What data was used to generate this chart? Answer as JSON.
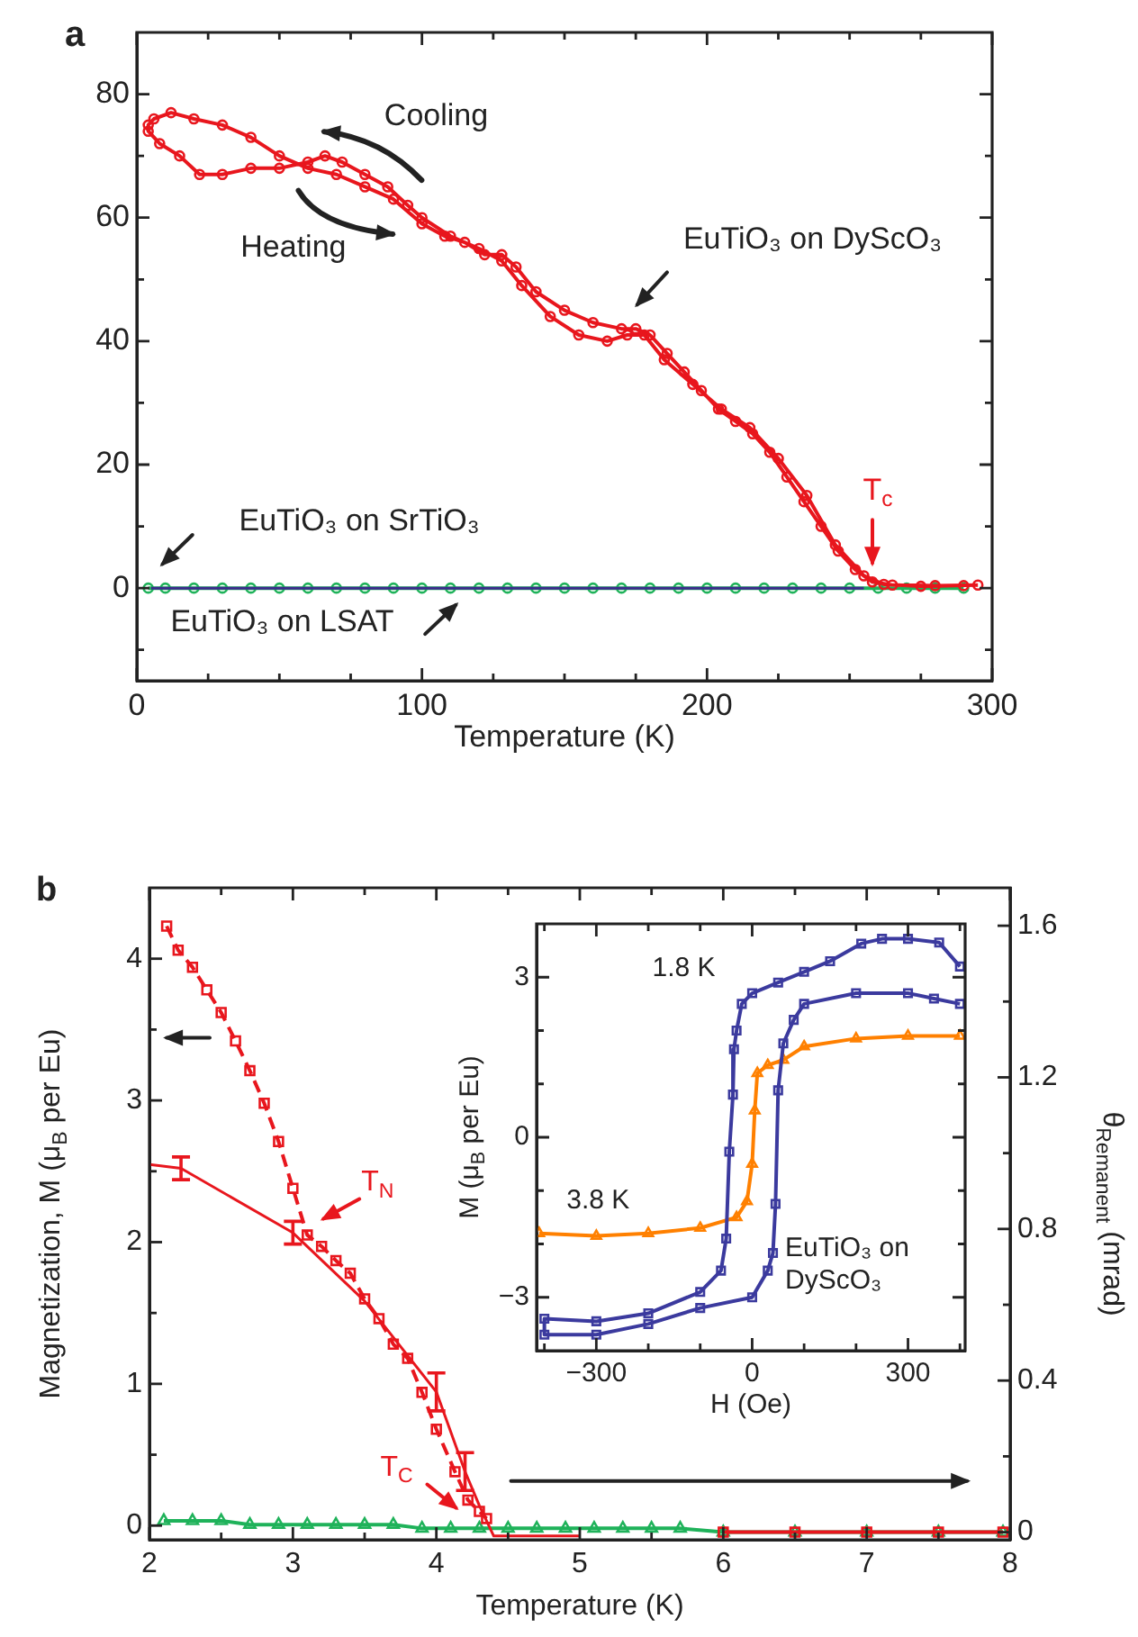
{
  "chart_data": [
    {
      "type": "line",
      "title": "a",
      "xlabel": "Temperature (K)",
      "xlim": [
        0,
        300
      ],
      "xticks": [
        0,
        {
          "value": 25,
          "label": null
        },
        {
          "value": 50,
          "label": null
        },
        {
          "value": 75,
          "label": null
        },
        100,
        {
          "value": 125,
          "label": null
        },
        {
          "value": 150,
          "label": null
        },
        {
          "value": 175,
          "label": null
        },
        200,
        {
          "value": 225,
          "label": null
        },
        {
          "value": 250,
          "label": null
        },
        {
          "value": 275,
          "label": null
        },
        300
      ],
      "ylim": [
        -15,
        90
      ],
      "yticks": [
        {
          "value": -10,
          "label": null
        },
        0,
        {
          "value": 10,
          "label": null
        },
        20,
        {
          "value": 30,
          "label": null
        },
        40,
        {
          "value": 50,
          "label": null
        },
        60,
        {
          "value": 70,
          "label": null
        },
        80
      ],
      "grid": false,
      "legend": false,
      "annotations": [
        "Cooling",
        "Heating",
        {
          "text": "T$_{c}$",
          "x": 258,
          "y": 0
        }
      ],
      "series": [
        {
          "name": "EuTiO₃ on DyScO₃",
          "color": "#e8161d",
          "marker": "circle",
          "line_style": "solid",
          "x": [
            295,
            280,
            265,
            258,
            252,
            246,
            240,
            234,
            228,
            222,
            216,
            210,
            204,
            198,
            192,
            186,
            180,
            175,
            170,
            160,
            150,
            140,
            133,
            128,
            122,
            115,
            108,
            100,
            90,
            80,
            70,
            60,
            50,
            40,
            30,
            20,
            12,
            6,
            4,
            4,
            8,
            15,
            22,
            30,
            40,
            50,
            60,
            66,
            72,
            80,
            88,
            95,
            100,
            110,
            120,
            128,
            135,
            145,
            155,
            165,
            172,
            178,
            185,
            195,
            205,
            215,
            225,
            235,
            245,
            255,
            262,
            275,
            290
          ],
          "values": [
            0.5,
            0.4,
            0.5,
            1,
            3,
            6,
            10,
            14,
            18,
            22,
            25,
            27,
            29,
            32,
            35,
            38,
            41,
            42,
            42,
            43,
            45,
            48,
            52,
            54,
            54,
            56,
            57,
            59,
            63,
            65,
            67,
            68,
            70,
            73,
            75,
            76,
            77,
            76,
            75,
            74,
            72,
            70,
            67,
            67,
            68,
            68,
            69,
            70,
            69,
            67,
            65,
            62,
            60,
            57,
            55,
            53,
            49,
            44,
            41,
            40,
            41,
            41,
            37,
            33,
            29,
            26,
            21,
            15,
            7,
            2,
            0.6,
            0.3,
            0.4
          ]
        },
        {
          "name": "EuTiO₃ on SrTiO₃",
          "color": "#1fb25a",
          "marker": "circle",
          "line_style": "solid",
          "x": [
            4,
            10,
            20,
            30,
            40,
            50,
            60,
            70,
            80,
            90,
            100,
            110,
            120,
            130,
            140,
            150,
            160,
            170,
            180,
            190,
            200,
            210,
            220,
            230,
            240,
            250,
            260,
            270,
            280,
            290
          ],
          "values": [
            0,
            0,
            0,
            0,
            0,
            0,
            0,
            0,
            0,
            0,
            0,
            0,
            0,
            0,
            0,
            0,
            0,
            0,
            0,
            0,
            0,
            0,
            0,
            0,
            0,
            0,
            0,
            0,
            0,
            0
          ]
        },
        {
          "name": "EuTiO₃ on LSAT",
          "color": "#3b2a8c",
          "marker": "none",
          "line_style": "solid",
          "x": [
            5,
            35,
            65,
            95,
            125,
            155,
            185,
            215,
            245,
            255
          ],
          "values": [
            0,
            0,
            0,
            0,
            0,
            0,
            0,
            0,
            0,
            0
          ]
        }
      ]
    },
    {
      "type": "line",
      "title": "b",
      "xlabel": "Temperature (K)",
      "ylabel": "Magnetization, M (μ$_{B}$ per Eu)",
      "y2label": "θ$_{Remanent}$ (mrad)",
      "xlim": [
        2,
        8
      ],
      "xticks": [
        2,
        {
          "value": 2.5,
          "label": null
        },
        3,
        {
          "value": 3.5,
          "label": null
        },
        4,
        {
          "value": 4.5,
          "label": null
        },
        5,
        {
          "value": 5.5,
          "label": null
        },
        6,
        {
          "value": 6.5,
          "label": null
        },
        7,
        {
          "value": 7.5,
          "label": null
        },
        8
      ],
      "ylim": [
        -0.1,
        4.5
      ],
      "yticks": [
        0,
        {
          "value": 0.5,
          "label": null
        },
        1,
        {
          "value": 1.5,
          "label": null
        },
        2,
        {
          "value": 2.5,
          "label": null
        },
        3,
        {
          "value": 3.5,
          "label": null
        },
        4
      ],
      "y2lim": [
        -0.02,
        1.7
      ],
      "y2ticks": [
        0,
        {
          "value": 0.2,
          "label": null
        },
        0.4,
        {
          "value": 0.6,
          "label": null
        },
        0.8,
        {
          "value": 1.0,
          "label": null
        },
        1.2,
        {
          "value": 1.4,
          "label": null
        },
        1.6
      ],
      "grid": false,
      "legend": false,
      "annotations": [
        {
          "text": "T$_{N}$",
          "x": 3.15,
          "y": 2.05
        },
        {
          "text": "T$_{C}$",
          "x": 4.3,
          "y": 0.1
        }
      ],
      "series": [
        {
          "color": "#e8161d",
          "marker": "square",
          "line_style": "dashed",
          "axis": "y",
          "x": [
            2.12,
            2.2,
            2.3,
            2.4,
            2.5,
            2.6,
            2.7,
            2.8,
            2.9,
            3.0,
            3.1,
            3.2,
            3.3,
            3.4,
            3.5,
            3.6,
            3.7,
            3.8,
            3.9,
            4.0,
            4.13,
            4.22,
            4.3,
            4.35
          ],
          "values": [
            4.23,
            4.06,
            3.94,
            3.78,
            3.62,
            3.42,
            3.21,
            2.98,
            2.71,
            2.38,
            2.05,
            1.97,
            1.87,
            1.78,
            1.6,
            1.46,
            1.28,
            1.18,
            0.94,
            0.68,
            0.38,
            0.18,
            0.1,
            0.05
          ]
        },
        {
          "color": "#e8161d",
          "marker": "none",
          "line_style": "solid",
          "axis": "y2",
          "x": [
            2.0,
            2.22,
            3.0,
            3.5,
            4.0,
            4.2,
            4.3,
            4.4,
            4.7,
            5.0
          ],
          "values": [
            0.97,
            0.96,
            0.79,
            0.61,
            0.37,
            0.16,
            0.07,
            -0.01,
            -0.01,
            -0.01
          ],
          "errors": [
            null,
            0.03,
            0.03,
            null,
            0.05,
            0.05,
            null,
            null,
            null,
            null
          ]
        },
        {
          "color": "#e8161d",
          "marker": "square",
          "line_style": "solid",
          "axis": "y2",
          "x": [
            6,
            6.5,
            7,
            7.5,
            7.95
          ],
          "values": [
            0,
            0,
            0,
            0,
            0
          ]
        },
        {
          "color": "#1fb25a",
          "marker": "triangle",
          "line_style": "solid",
          "axis": "y2",
          "x": [
            2.1,
            2.3,
            2.5,
            2.7,
            2.9,
            3.1,
            3.3,
            3.5,
            3.7,
            3.9,
            4.1,
            4.3,
            4.5,
            4.7,
            4.9,
            5.1,
            5.3,
            5.5,
            5.7,
            6,
            6.5,
            7,
            7.5,
            7.95
          ],
          "values": [
            0.03,
            0.03,
            0.03,
            0.02,
            0.02,
            0.02,
            0.02,
            0.02,
            0.02,
            0.01,
            0.01,
            0.01,
            0.01,
            0.01,
            0.01,
            0.01,
            0.01,
            0.01,
            0.01,
            0,
            0,
            0,
            0,
            0
          ]
        }
      ]
    },
    {
      "type": "line",
      "xlabel": "H (Oe)",
      "ylabel": "M (μ$_{B}$ per Eu)",
      "xlim": [
        -415,
        410
      ],
      "xticks": [
        {
          "value": -400,
          "label": null
        },
        {
          "value": -300,
          "label": "−300"
        },
        {
          "value": -200,
          "label": null
        },
        {
          "value": -100,
          "label": null
        },
        0,
        {
          "value": 100,
          "label": null
        },
        {
          "value": 200,
          "label": null
        },
        300,
        {
          "value": 400,
          "label": null
        }
      ],
      "ylim": [
        -4,
        4
      ],
      "yticks": [
        {
          "value": -3,
          "label": "−3"
        },
        {
          "value": -2,
          "label": null
        },
        {
          "value": -1,
          "label": null
        },
        0,
        {
          "value": 1,
          "label": null
        },
        {
          "value": 2,
          "label": null
        },
        3
      ],
      "grid": false,
      "legend": false,
      "annotations": [
        "EuTiO₃ on DyScO₃"
      ],
      "series": [
        {
          "name": "1.8 K",
          "color": "#3b3a9e",
          "marker": "square",
          "line_style": "solid",
          "x": [
            400,
            360,
            300,
            250,
            210,
            150,
            100,
            50,
            0,
            -20,
            -30,
            -35,
            -37,
            -44,
            -50,
            -60,
            -100,
            -200,
            -300,
            -400,
            -400,
            -300,
            -200,
            -100,
            0,
            30,
            40,
            45,
            50,
            60,
            80,
            100,
            200,
            300,
            350,
            400
          ],
          "values": [
            3.2,
            3.65,
            3.72,
            3.72,
            3.63,
            3.3,
            3.1,
            2.9,
            2.7,
            2.5,
            2.0,
            1.65,
            0.8,
            -0.27,
            -1.9,
            -2.5,
            -2.9,
            -3.3,
            -3.45,
            -3.4,
            -3.7,
            -3.7,
            -3.5,
            -3.2,
            -3.0,
            -2.5,
            -2.17,
            -1.25,
            0.88,
            1.76,
            2.2,
            2.5,
            2.7,
            2.7,
            2.6,
            2.5
          ]
        },
        {
          "name": "3.8 K",
          "color": "#ff8000",
          "marker": "triangle",
          "line_style": "solid",
          "x": [
            -410,
            -300,
            -200,
            -100,
            -30,
            -10,
            0,
            5,
            10,
            30,
            60,
            100,
            200,
            300,
            400
          ],
          "values": [
            -1.8,
            -1.85,
            -1.8,
            -1.7,
            -1.5,
            -1.2,
            -0.5,
            0.5,
            1.2,
            1.35,
            1.45,
            1.7,
            1.85,
            1.9,
            1.9
          ]
        }
      ]
    }
  ]
}
